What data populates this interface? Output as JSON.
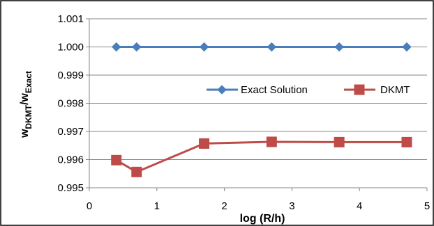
{
  "chart_data": {
    "type": "line",
    "xlabel": "log (R/h)",
    "ylabel_main": "w",
    "ylabel_sub1": "DKMT",
    "ylabel_sep": "/w",
    "ylabel_sub2": "Exact",
    "xlim": [
      0,
      5
    ],
    "ylim": [
      0.995,
      1.001
    ],
    "xticks": [
      "0",
      "1",
      "2",
      "3",
      "4",
      "5"
    ],
    "yticks": [
      "0.995",
      "0.996",
      "0.997",
      "0.998",
      "0.999",
      "1.000",
      "1.001"
    ],
    "grid": "horizontal",
    "legend_position": "center-right",
    "series": [
      {
        "name": "Exact Solution",
        "color": "#4a7ebb",
        "marker": "diamond",
        "x": [
          0.4,
          0.7,
          1.7,
          2.7,
          3.7,
          4.7
        ],
        "y": [
          1.0,
          1.0,
          1.0,
          1.0,
          1.0,
          1.0
        ]
      },
      {
        "name": "DKMT",
        "color": "#be4b48",
        "marker": "square",
        "x": [
          0.4,
          0.7,
          1.7,
          2.7,
          3.7,
          4.7
        ],
        "y": [
          0.99598,
          0.99556,
          0.99657,
          0.99663,
          0.99662,
          0.99662
        ]
      }
    ]
  }
}
